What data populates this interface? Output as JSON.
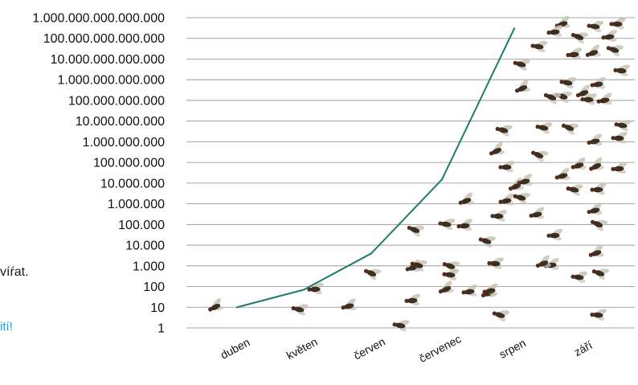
{
  "side_text": {
    "line1": "víŕat.",
    "line2": "ití!"
  },
  "colors": {
    "line": "#1e7b6c",
    "grid": "#8c8c8c",
    "fly_body": "#3b2f22",
    "fly_wing": "#c9c3b5",
    "side_link": "#1aa6dc"
  },
  "decoration": {
    "flies_icon": "fly-icon"
  },
  "chart_data": {
    "type": "line",
    "title": "",
    "xlabel": "",
    "ylabel": "",
    "y_scale": "log10",
    "ylim": [
      1,
      1000000000000000
    ],
    "grid": "horizontal",
    "legend": "none",
    "y_ticks": [
      "1",
      "10",
      "100",
      "1.000",
      "10.000",
      "100.000",
      "1.000.000",
      "10.000.000",
      "100.000.000",
      "1.000.000.000",
      "10.000.000.000",
      "100.000.000.000",
      "1.000.000.000.000",
      "10.000.000.000.000",
      "100.000.000.000.000",
      "1.000.000.000.000.000"
    ],
    "categories": [
      "duben",
      "květen",
      "červen",
      "červenec",
      "srpen",
      "září"
    ],
    "series": [
      {
        "values": [
          10,
          70,
          4000,
          15000000,
          300000000000000,
          null
        ]
      }
    ]
  }
}
